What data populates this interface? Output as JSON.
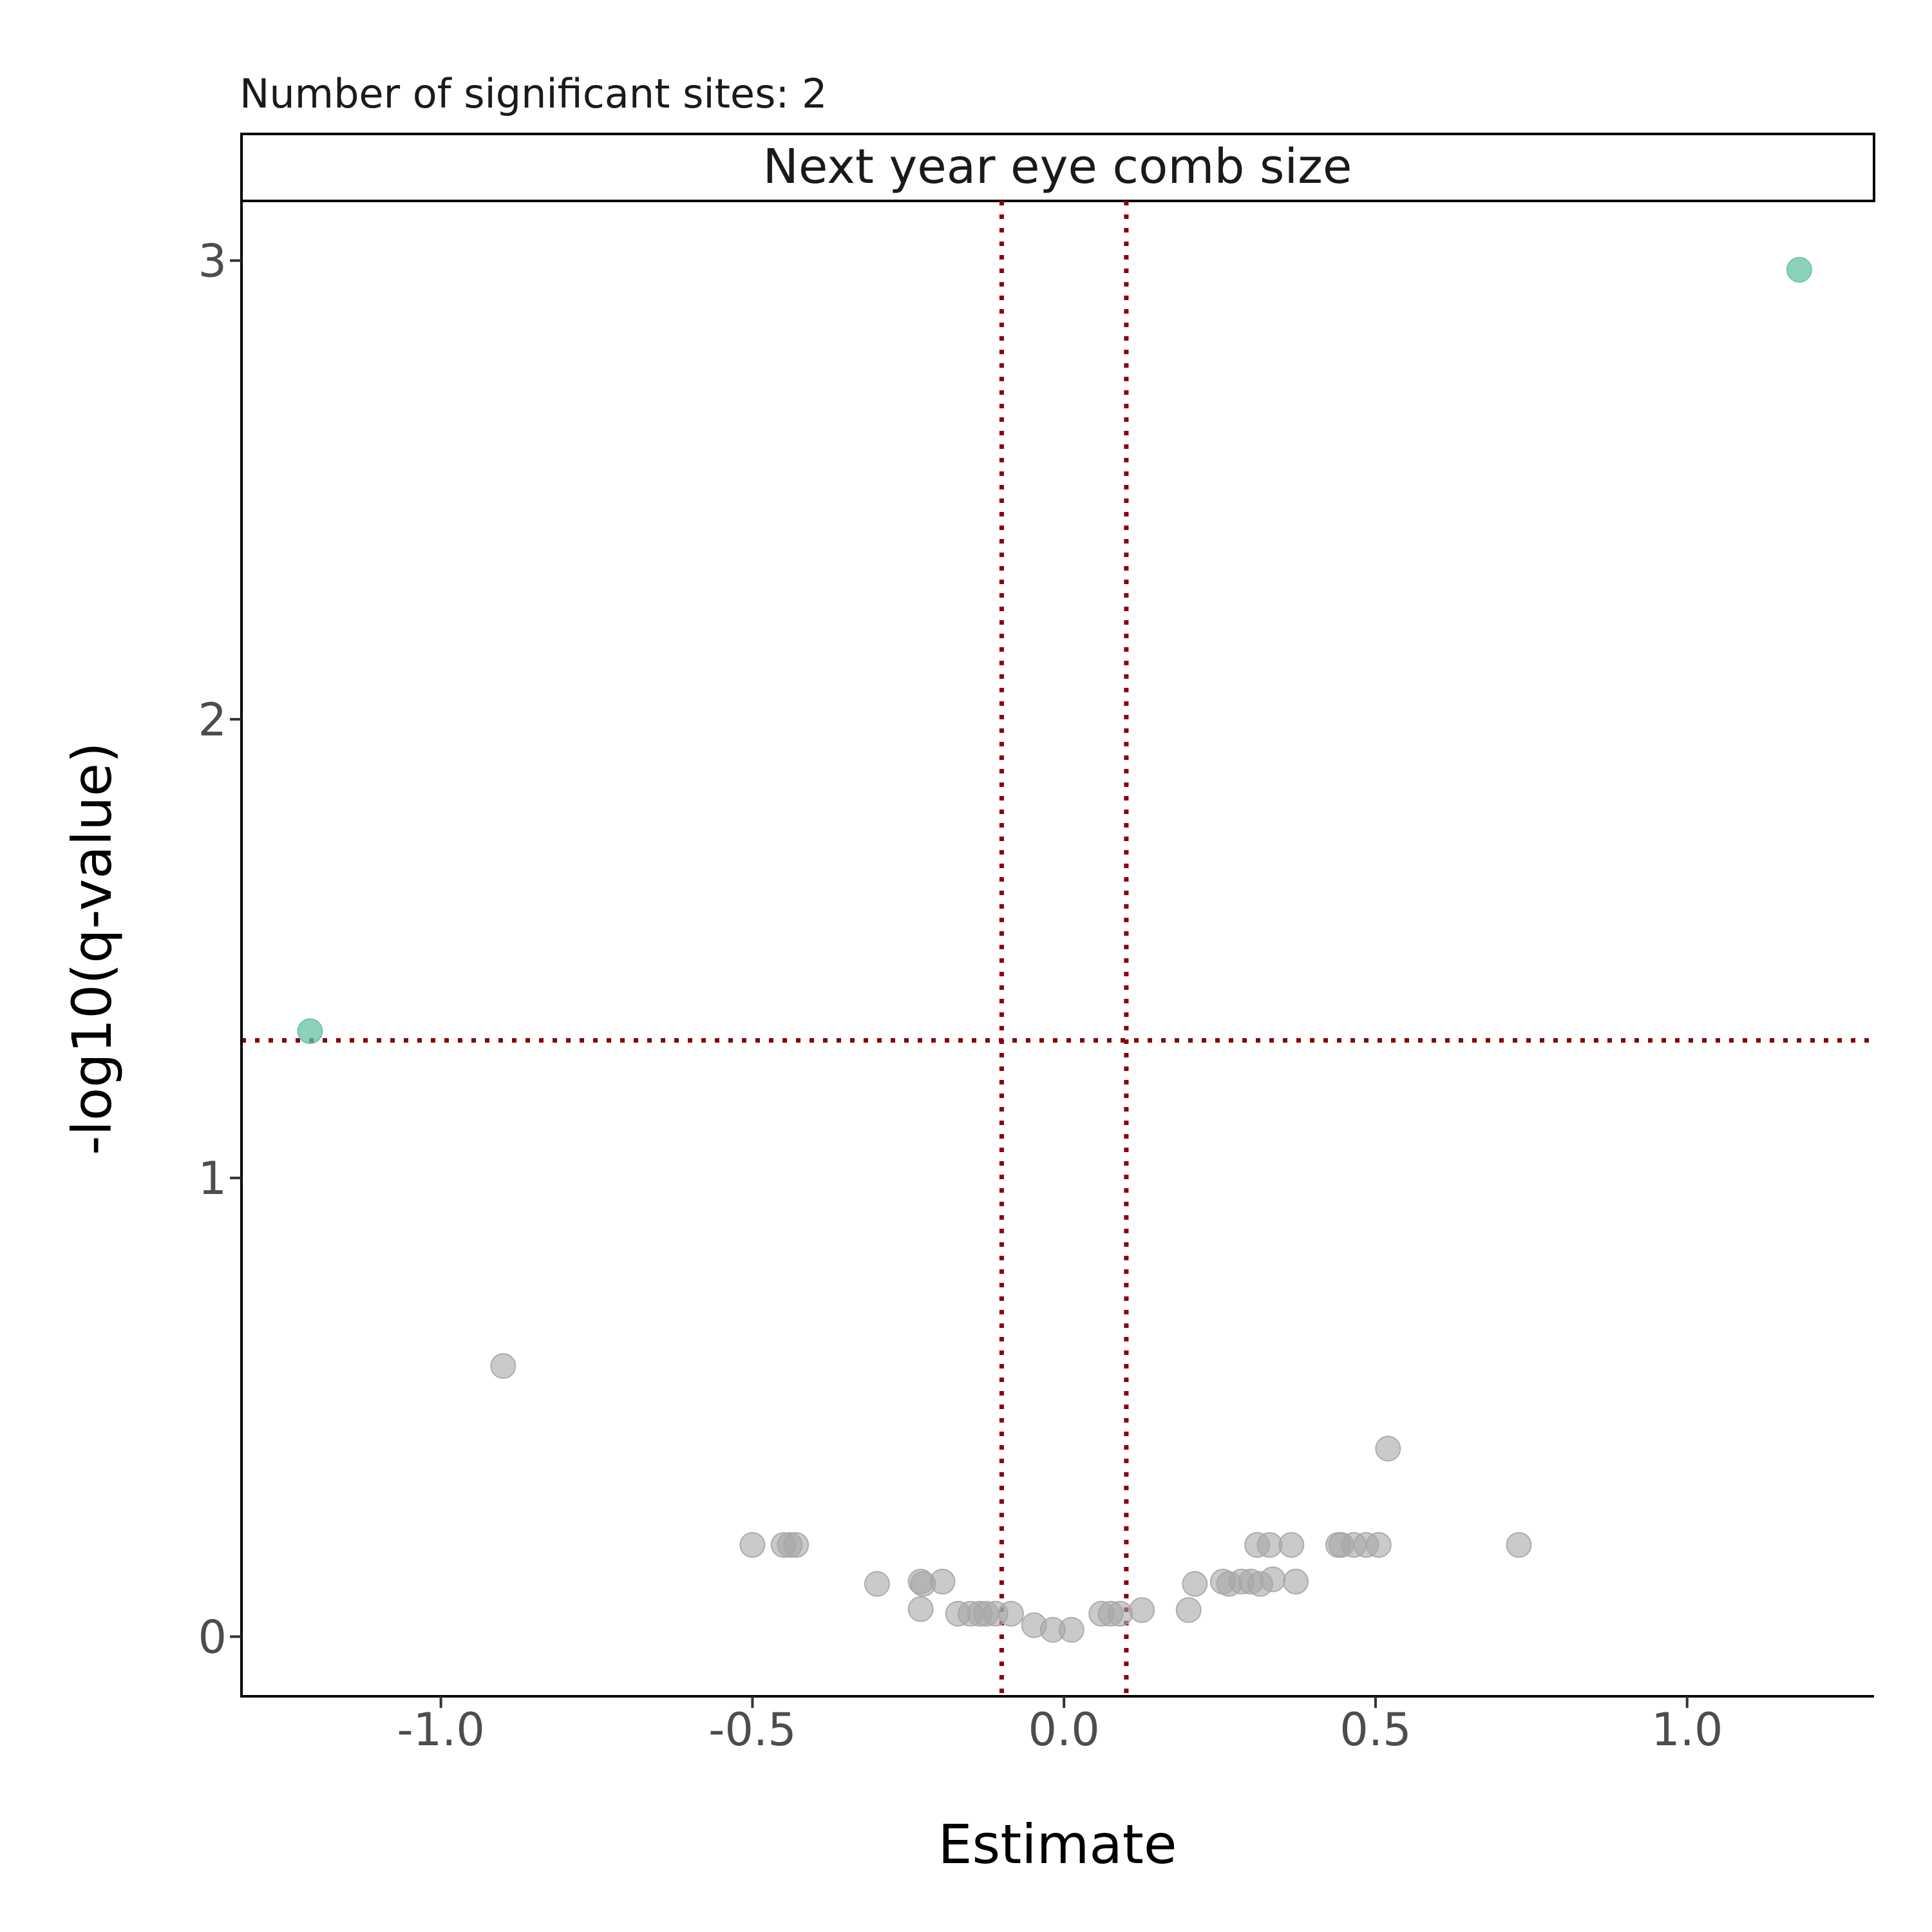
{
  "chart_data": {
    "type": "scatter",
    "subtitle": "Number of significant sites: 2",
    "facet_label": "Next year eye comb size",
    "xlabel": "Estimate",
    "ylabel": "-log10(q-value)",
    "xlim": [
      -1.32,
      1.3
    ],
    "ylim": [
      -0.13,
      3.13
    ],
    "x_ticks": [
      -1.0,
      -0.5,
      0.0,
      0.5,
      1.0
    ],
    "x_tick_labels": [
      "-1.0",
      "-0.5",
      "0.0",
      "0.5",
      "1.0"
    ],
    "y_ticks": [
      0,
      1,
      2,
      3
    ],
    "y_tick_labels": [
      "0",
      "1",
      "2",
      "3"
    ],
    "grid": false,
    "thresholds": {
      "vertical_x": [
        -0.1,
        0.1
      ],
      "horizontal_y": 1.3,
      "line_color": "#8b0000"
    },
    "colors": {
      "significant": "#66c2a5",
      "not_significant": "#a6a6a6"
    },
    "series": [
      {
        "significant": true,
        "points": [
          {
            "x": 1.18,
            "y": 2.98
          },
          {
            "x": -1.21,
            "y": 1.32
          }
        ]
      },
      {
        "significant": false,
        "points": [
          {
            "x": -0.9,
            "y": 0.59
          },
          {
            "x": 0.52,
            "y": 0.41
          },
          {
            "x": -0.5,
            "y": 0.2
          },
          {
            "x": -0.45,
            "y": 0.2
          },
          {
            "x": -0.44,
            "y": 0.2
          },
          {
            "x": -0.43,
            "y": 0.2
          },
          {
            "x": -0.3,
            "y": 0.115
          },
          {
            "x": -0.23,
            "y": 0.12
          },
          {
            "x": -0.226,
            "y": 0.115
          },
          {
            "x": -0.195,
            "y": 0.12
          },
          {
            "x": -0.23,
            "y": 0.06
          },
          {
            "x": -0.17,
            "y": 0.05
          },
          {
            "x": -0.15,
            "y": 0.05
          },
          {
            "x": -0.135,
            "y": 0.05
          },
          {
            "x": -0.125,
            "y": 0.05
          },
          {
            "x": -0.11,
            "y": 0.05
          },
          {
            "x": -0.085,
            "y": 0.05
          },
          {
            "x": -0.048,
            "y": 0.025
          },
          {
            "x": -0.018,
            "y": 0.015
          },
          {
            "x": 0.012,
            "y": 0.015
          },
          {
            "x": 0.06,
            "y": 0.05
          },
          {
            "x": 0.075,
            "y": 0.05
          },
          {
            "x": 0.09,
            "y": 0.05
          },
          {
            "x": 0.125,
            "y": 0.058
          },
          {
            "x": 0.2,
            "y": 0.058
          },
          {
            "x": 0.21,
            "y": 0.115
          },
          {
            "x": 0.255,
            "y": 0.12
          },
          {
            "x": 0.265,
            "y": 0.115
          },
          {
            "x": 0.285,
            "y": 0.12
          },
          {
            "x": 0.3,
            "y": 0.12
          },
          {
            "x": 0.315,
            "y": 0.115
          },
          {
            "x": 0.335,
            "y": 0.125
          },
          {
            "x": 0.372,
            "y": 0.12
          },
          {
            "x": 0.31,
            "y": 0.2
          },
          {
            "x": 0.33,
            "y": 0.2
          },
          {
            "x": 0.365,
            "y": 0.2
          },
          {
            "x": 0.44,
            "y": 0.2
          },
          {
            "x": 0.445,
            "y": 0.2
          },
          {
            "x": 0.465,
            "y": 0.2
          },
          {
            "x": 0.485,
            "y": 0.2
          },
          {
            "x": 0.505,
            "y": 0.2
          },
          {
            "x": 0.73,
            "y": 0.2
          }
        ]
      }
    ]
  }
}
